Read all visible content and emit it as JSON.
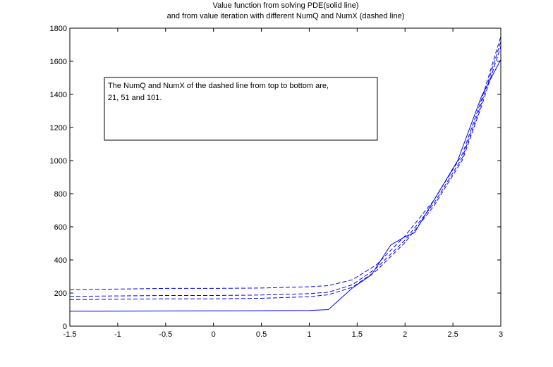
{
  "chart_data": {
    "type": "line",
    "title": [
      "Value function from solving PDE(solid line)",
      "and from value iteration with different NumQ and NumX  (dashed line)"
    ],
    "xlabel": "",
    "ylabel": "",
    "xlim": [
      -1.5,
      3
    ],
    "ylim": [
      0,
      1800
    ],
    "xticks": [
      "-1.5",
      "-1",
      "-0.5",
      "0",
      "0.5",
      "1",
      "1.5",
      "2",
      "2.5",
      "3"
    ],
    "xtick_values": [
      -1.5,
      -1,
      -0.5,
      0,
      0.5,
      1,
      1.5,
      2,
      2.5,
      3
    ],
    "yticks": [
      "0",
      "200",
      "400",
      "600",
      "800",
      "1000",
      "1200",
      "1400",
      "1600",
      "1800"
    ],
    "ytick_values": [
      0,
      200,
      400,
      600,
      800,
      1000,
      1200,
      1400,
      1600,
      1800
    ],
    "grid": false,
    "annotation": [
      "The NumQ and NumX of the dashed line from top to bottom are,",
      "21, 51 and 101."
    ],
    "colors": {
      "line": "#0000ff",
      "axes": "#000000",
      "background": "#ffffff"
    },
    "series": [
      {
        "style": "solid",
        "x": [
          -1.5,
          0.42,
          1.0,
          1.2,
          1.45,
          1.65,
          1.85,
          2.0,
          2.1,
          2.3,
          2.55,
          2.8,
          3.0
        ],
        "y": [
          90,
          93,
          95,
          100,
          230,
          310,
          490,
          540,
          565,
          760,
          1000,
          1390,
          1610
        ]
      },
      {
        "style": "dashed",
        "x": [
          -1.5,
          -0.5,
          0.0,
          0.5,
          1.0,
          1.2,
          1.45,
          1.7,
          2.0,
          2.3,
          2.6,
          2.8,
          3.0
        ],
        "y": [
          220,
          228,
          228,
          230,
          238,
          245,
          280,
          370,
          545,
          760,
          1040,
          1370,
          1750
        ]
      },
      {
        "style": "dashed",
        "x": [
          -1.5,
          -0.5,
          0.0,
          0.5,
          1.0,
          1.2,
          1.45,
          1.7,
          2.0,
          2.3,
          2.6,
          2.8,
          3.0
        ],
        "y": [
          180,
          185,
          185,
          188,
          196,
          205,
          250,
          350,
          520,
          740,
          1020,
          1350,
          1720
        ]
      },
      {
        "style": "dashed",
        "x": [
          -1.5,
          -0.5,
          0.0,
          0.5,
          1.0,
          1.2,
          1.45,
          1.7,
          2.0,
          2.3,
          2.6,
          2.8,
          3.0
        ],
        "y": [
          160,
          165,
          165,
          168,
          178,
          190,
          235,
          335,
          505,
          725,
          1005,
          1330,
          1690
        ]
      }
    ]
  }
}
